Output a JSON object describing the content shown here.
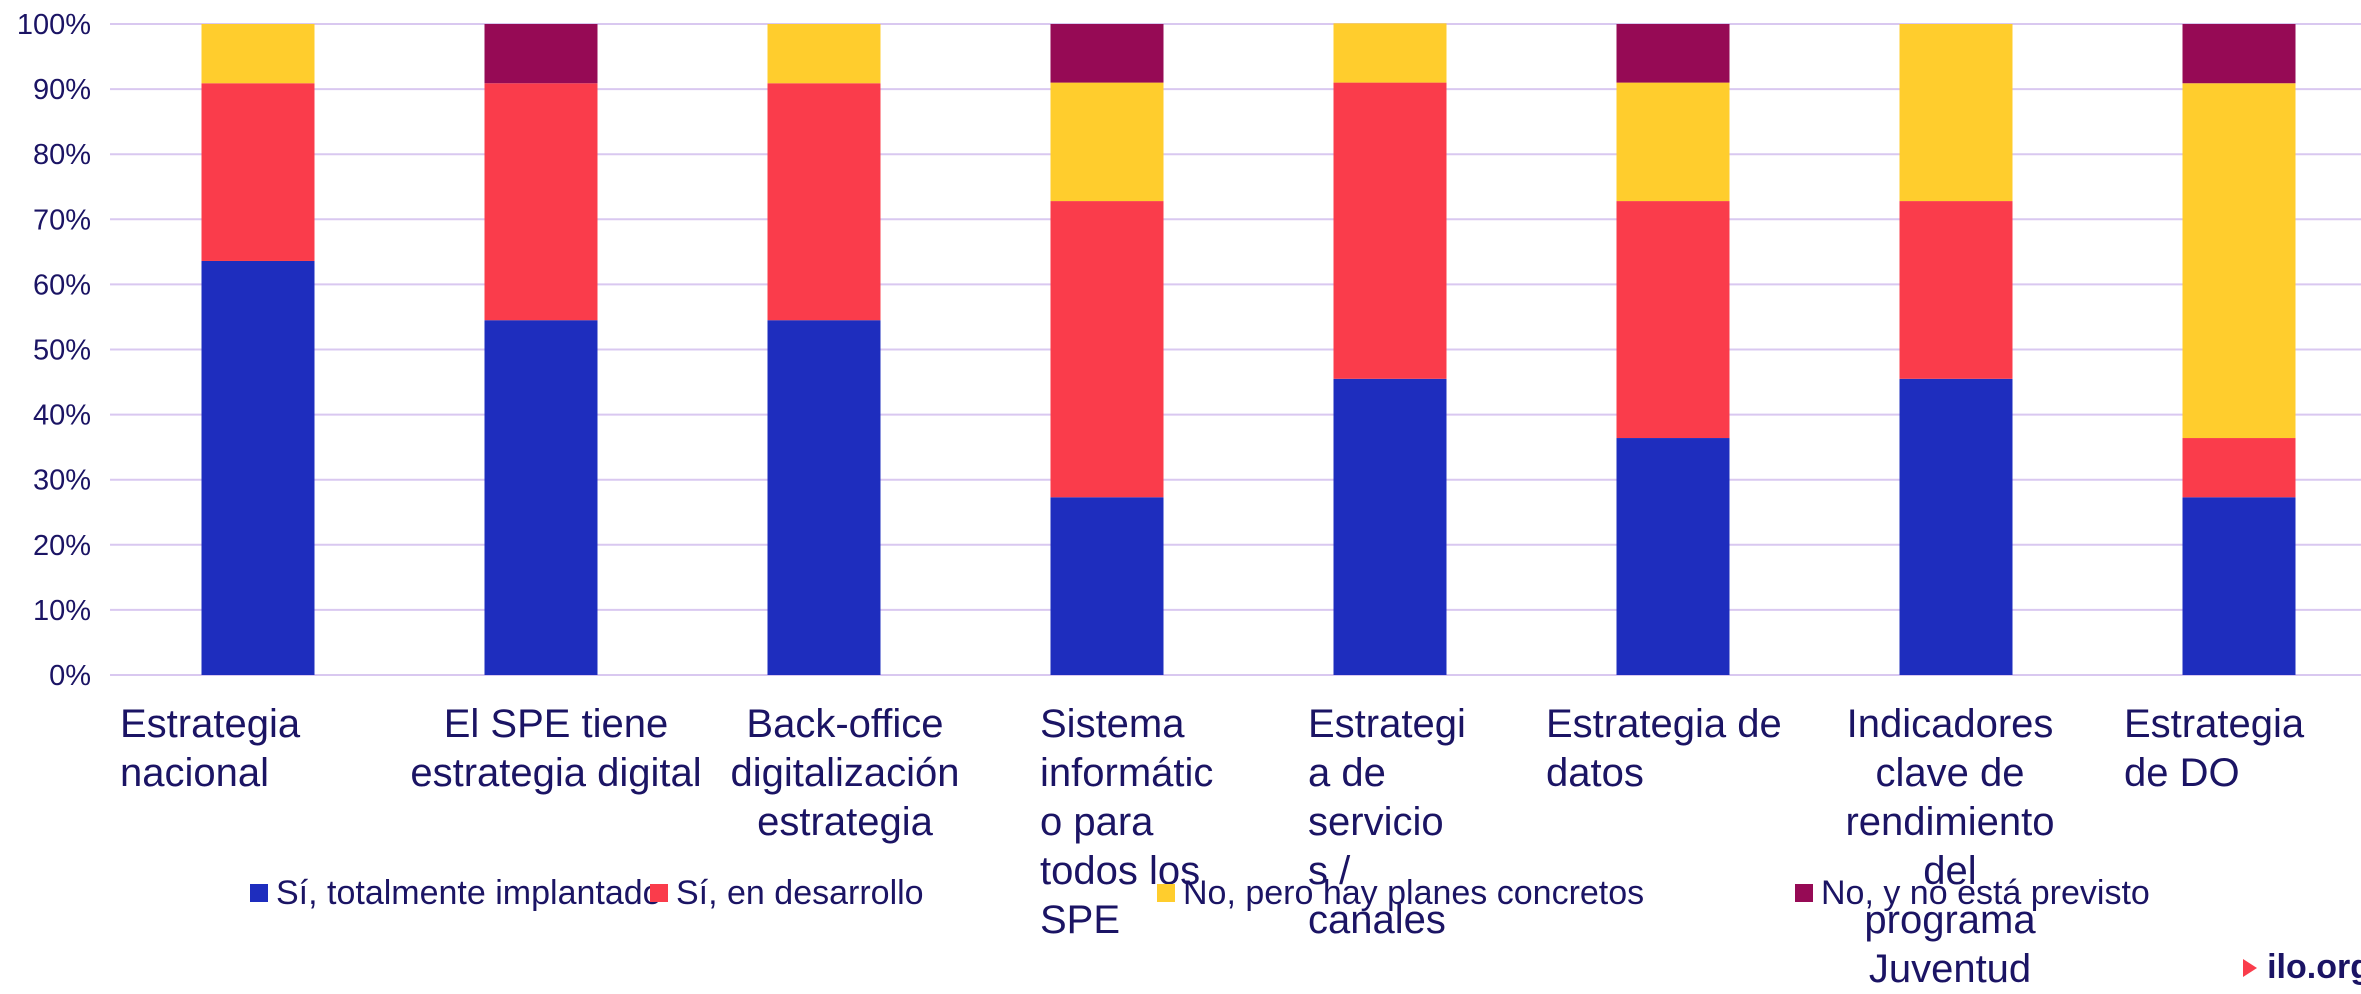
{
  "chart_data": {
    "type": "bar",
    "stacked": true,
    "categories": [
      "Estrategia\nnacional",
      "El SPE tiene\nestrategia digital",
      "Back-office\ndigitalización\nestrategia",
      "Sistema\ninformátic\no para\ntodos los\nSPE",
      "Estrategi\na de\nservicio\ns /\ncanales",
      "Estrategia de\ndatos",
      "Indicadores\nclave de\nrendimiento\ndel\nprograma\nJuventud",
      "Estrategia\nde DO"
    ],
    "series": [
      {
        "name": "Sí, totalmente implantado",
        "color": "#1e2dbe",
        "values": [
          63.6,
          54.5,
          54.5,
          27.3,
          45.5,
          36.4,
          45.5,
          27.3
        ]
      },
      {
        "name": "Sí, en desarrollo",
        "color": "#fa3c4b",
        "values": [
          27.3,
          36.4,
          36.4,
          45.5,
          45.5,
          36.4,
          27.3,
          9.1
        ]
      },
      {
        "name": "No, pero hay planes concretos",
        "color": "#ffcd2d",
        "values": [
          9.1,
          0,
          9.1,
          18.2,
          9.1,
          18.2,
          27.2,
          54.5
        ]
      },
      {
        "name": "No, y no está previsto",
        "color": "#960a55",
        "values": [
          0,
          9.1,
          0,
          9.0,
          0,
          9.0,
          0,
          9.1
        ]
      }
    ],
    "ylim": [
      0,
      100
    ],
    "yticks": [
      "0%",
      "10%",
      "20%",
      "30%",
      "40%",
      "50%",
      "60%",
      "70%",
      "80%",
      "90%",
      "100%"
    ],
    "grid": true,
    "gridColor": "#d9c8f0",
    "legend": "bottom"
  },
  "brand": {
    "text": "ilo.org",
    "color": "#fa3c4b"
  }
}
